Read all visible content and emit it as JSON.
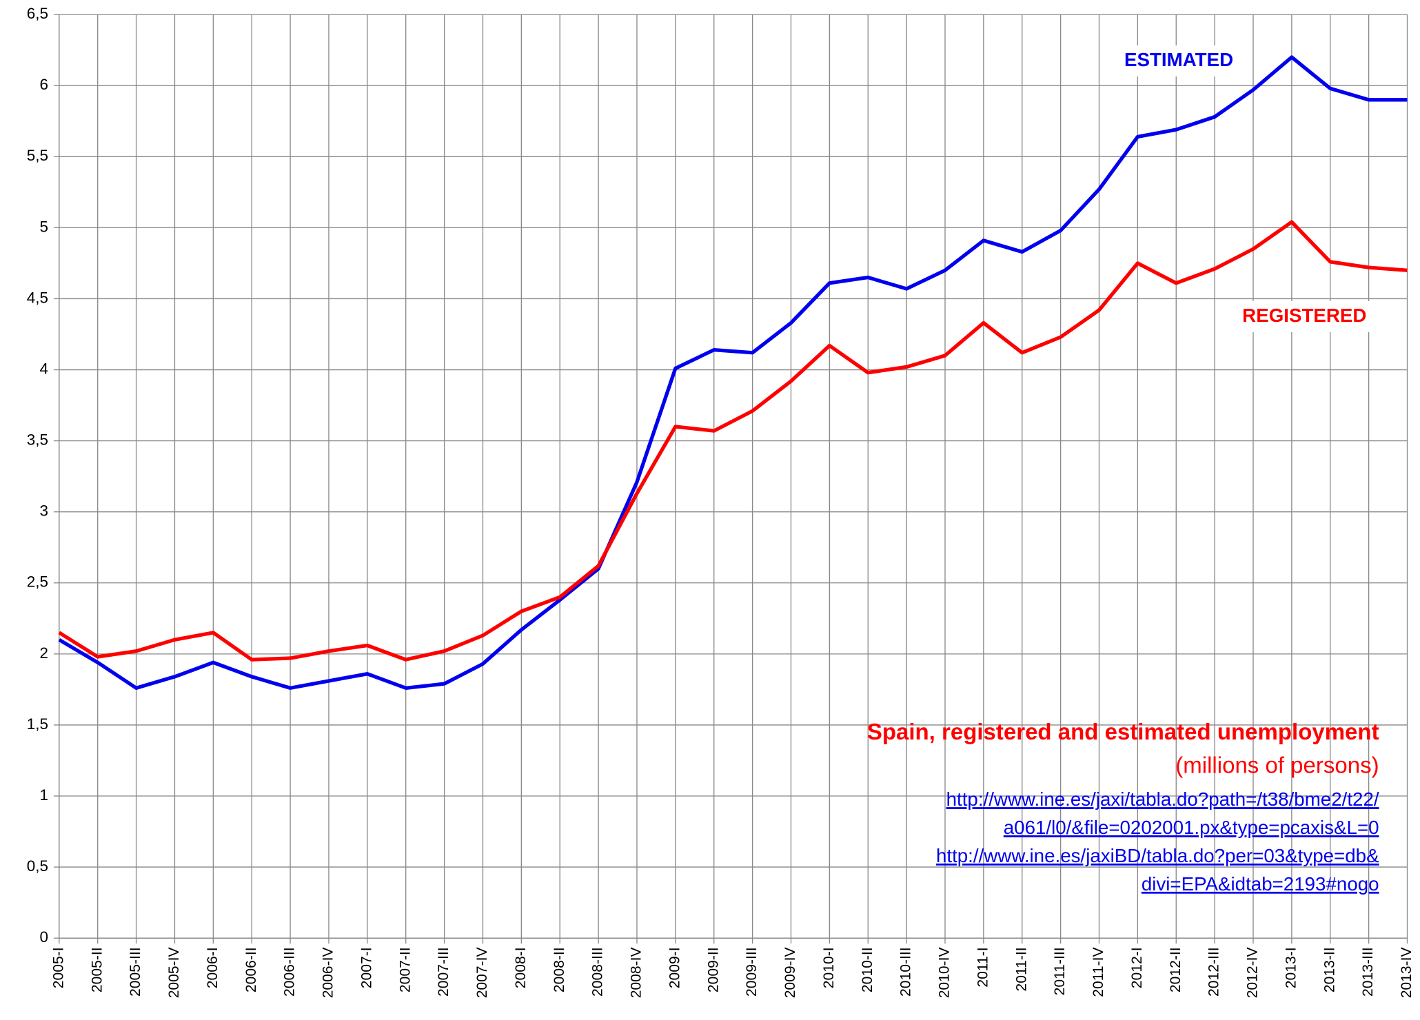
{
  "chart_data": {
    "type": "line",
    "title": "Spain, registered and estimated unemployment",
    "subtitle": "(millions of persons)",
    "sources": [
      "http://www.ine.es/jaxi/tabla.do?path=/t38/bme2/t22/",
      "a061/l0/&file=0202001.px&type=pcaxis&L=0",
      "http://www.ine.es/jaxiBD/tabla.do?per=03&type=db&",
      "divi=EPA&idtab=2193#nogo"
    ],
    "categories": [
      "2005-I",
      "2005-II",
      "2005-III",
      "2005-IV",
      "2006-I",
      "2006-II",
      "2006-III",
      "2006-IV",
      "2007-I",
      "2007-II",
      "2007-III",
      "2007-IV",
      "2008-I",
      "2008-II",
      "2008-III",
      "2008-IV",
      "2009-I",
      "2009-II",
      "2009-III",
      "2009-IV",
      "2010-I",
      "2010-II",
      "2010-III",
      "2010-IV",
      "2011-I",
      "2011-II",
      "2011-III",
      "2011-IV",
      "2012-I",
      "2012-II",
      "2012-III",
      "2012-IV",
      "2013-I",
      "2013-II",
      "2013-III",
      "2013-IV"
    ],
    "series": [
      {
        "name": "ESTIMATED",
        "color": "#0000ee",
        "values": [
          2.1,
          1.94,
          1.76,
          1.84,
          1.94,
          1.84,
          1.76,
          1.81,
          1.86,
          1.76,
          1.79,
          1.93,
          2.17,
          2.38,
          2.6,
          3.21,
          4.01,
          4.14,
          4.12,
          4.33,
          4.61,
          4.65,
          4.57,
          4.7,
          4.91,
          4.83,
          4.98,
          5.27,
          5.64,
          5.69,
          5.78,
          5.97,
          6.2,
          5.98,
          5.9,
          5.9
        ]
      },
      {
        "name": "REGISTERED",
        "color": "#ff0000",
        "values": [
          2.15,
          1.98,
          2.02,
          2.1,
          2.15,
          1.96,
          1.97,
          2.02,
          2.06,
          1.96,
          2.02,
          2.13,
          2.3,
          2.4,
          2.62,
          3.13,
          3.6,
          3.57,
          3.71,
          3.92,
          4.17,
          3.98,
          4.02,
          4.1,
          4.33,
          4.12,
          4.23,
          4.42,
          4.75,
          4.61,
          4.71,
          4.85,
          5.04,
          4.76,
          4.72,
          4.7
        ]
      }
    ],
    "ylim": [
      0,
      6.5
    ],
    "yticks": [
      0,
      {
        "value": 0.5,
        "label": "0,5"
      },
      1,
      {
        "value": 1.5,
        "label": "1,5"
      },
      2,
      {
        "value": 2.5,
        "label": "2,5"
      },
      3,
      {
        "value": 3.5,
        "label": "3,5"
      },
      4,
      {
        "value": 4.5,
        "label": "4,5"
      },
      5,
      {
        "value": 5.5,
        "label": "5,5"
      },
      6,
      {
        "value": 6.5,
        "label": "6,5"
      }
    ],
    "grid": true
  }
}
